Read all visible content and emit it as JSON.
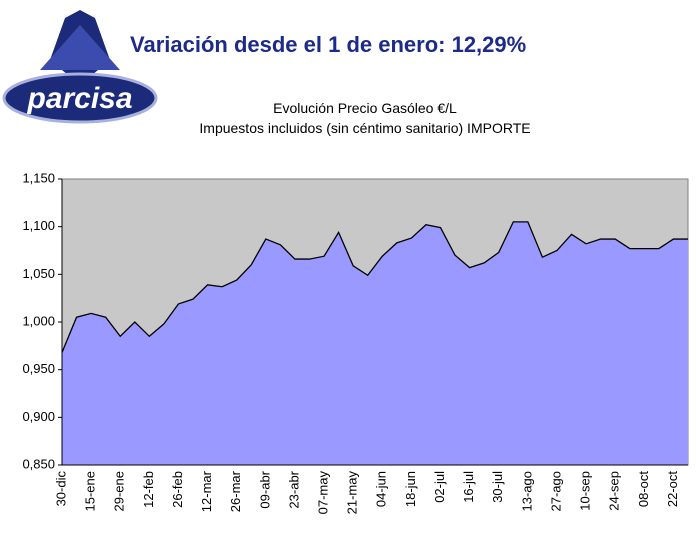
{
  "header": {
    "logo": "parcisa",
    "title": "Variación desde el 1 de enero:  12,29%"
  },
  "chart_data": {
    "type": "area",
    "title": "Evolución Precio Gasóleo €/L",
    "subtitle": "Impuestos incluidos (sin céntimo sanitario) IMPORTE",
    "categories": [
      "30-dic",
      null,
      "15-ene",
      null,
      "29-ene",
      null,
      "12-feb",
      null,
      "26-feb",
      null,
      "12-mar",
      null,
      "26-mar",
      null,
      "09-abr",
      null,
      "23-abr",
      null,
      "07-may",
      null,
      "21-may",
      null,
      "04-jun",
      null,
      "18-jun",
      null,
      "02-jul",
      null,
      "16-jul",
      null,
      "30-jul",
      null,
      "13-ago",
      null,
      "27-ago",
      null,
      "10-sep",
      null,
      "24-sep",
      null,
      "08-oct",
      null,
      "22-oct",
      null
    ],
    "series": [
      {
        "name": "IMPORTE",
        "color": "#9999ff",
        "values": [
          0.968,
          1.005,
          1.009,
          1.005,
          0.985,
          1.0,
          0.985,
          0.998,
          1.019,
          1.024,
          1.039,
          1.037,
          1.044,
          1.06,
          1.087,
          1.081,
          1.066,
          1.066,
          1.069,
          1.094,
          1.059,
          1.049,
          1.069,
          1.083,
          1.088,
          1.102,
          1.099,
          1.07,
          1.057,
          1.062,
          1.073,
          1.105,
          1.105,
          1.068,
          1.075,
          1.092,
          1.082,
          1.087,
          1.087,
          1.077,
          1.077,
          1.077,
          1.087,
          1.087
        ]
      }
    ],
    "ylim": [
      0.85,
      1.15
    ],
    "yticks": [
      {
        "value": 0.85,
        "label": "0,850"
      },
      {
        "value": 0.9,
        "label": "0,900"
      },
      {
        "value": 0.95,
        "label": "0,950"
      },
      {
        "value": 1.0,
        "label": "1,000"
      },
      {
        "value": 1.05,
        "label": "1,050"
      },
      {
        "value": 1.1,
        "label": "1,100"
      },
      {
        "value": 1.15,
        "label": "1,150"
      }
    ],
    "plot_background": "#c8c8c8",
    "grid": false
  }
}
